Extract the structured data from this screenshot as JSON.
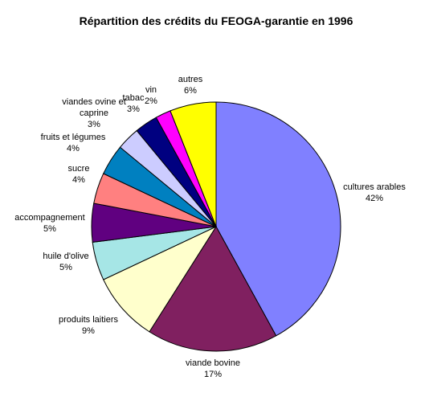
{
  "chart_data": {
    "type": "pie",
    "title": "Répartition des crédits du FEOGA-garantie en 1996",
    "slices": [
      {
        "label": "cultures arables",
        "value_label": "42%",
        "value": 42,
        "color": "#8080FF"
      },
      {
        "label": "viande bovine",
        "value_label": "17%",
        "value": 17,
        "color": "#802060"
      },
      {
        "label": "produits laitiers",
        "value_label": "9%",
        "value": 9,
        "color": "#FFFFCC"
      },
      {
        "label": "huile d'olive",
        "value_label": "5%",
        "value": 5,
        "color": "#A6E6E6"
      },
      {
        "label": "accompagnement",
        "value_label": "5%",
        "value": 5,
        "color": "#600080"
      },
      {
        "label": "sucre",
        "value_label": "4%",
        "value": 4,
        "color": "#FF8080"
      },
      {
        "label": "fruits et légumes",
        "value_label": "4%",
        "value": 4,
        "color": "#0080C0"
      },
      {
        "label_lines": [
          "viandes ovine et",
          "caprine"
        ],
        "value_label": "3%",
        "value": 3,
        "color": "#CCCCFF"
      },
      {
        "label": "tabac",
        "value_label": "3%",
        "value": 3,
        "color": "#000080"
      },
      {
        "label": "vin",
        "value_label": "2%",
        "value": 2,
        "color": "#FF00FF"
      },
      {
        "label": "autres",
        "value_label": "6%",
        "value": 6,
        "color": "#FFFF00"
      }
    ]
  }
}
